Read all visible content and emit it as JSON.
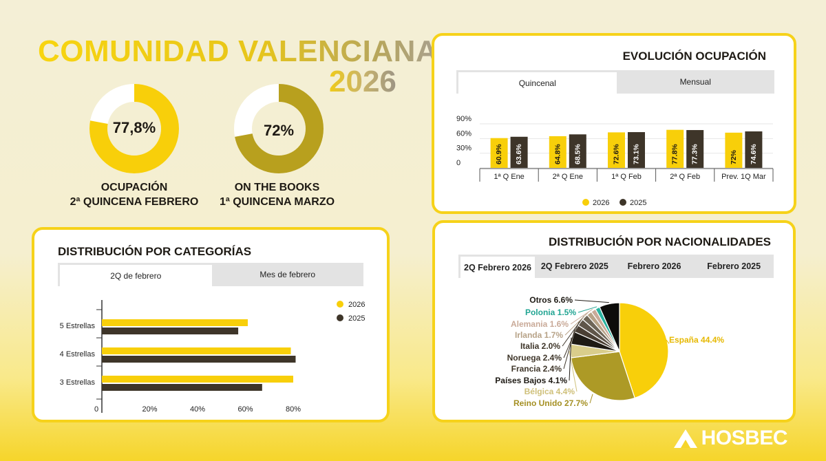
{
  "header": {
    "title_line1": "COMUNIDAD VALENCIANA",
    "title_line2": "2026"
  },
  "kpis": [
    {
      "value_label": "77,8%",
      "value": 77.8,
      "caption_line1": "OCUPACIÓN",
      "caption_line2": "2ª QUINCENA FEBRERO",
      "color": "#f8cf0a"
    },
    {
      "value_label": "72%",
      "value": 72,
      "caption_line1": "ON THE BOOKS",
      "caption_line2": "1ª QUINCENA MARZO",
      "color": "#b8a01e"
    }
  ],
  "occupancy_card": {
    "title": "EVOLUCIÓN OCUPACIÓN",
    "tabs": [
      "Quincenal",
      "Mensual"
    ],
    "legend": [
      "2026",
      "2025"
    ]
  },
  "categories_card": {
    "title": "DISTRIBUCIÓN POR CATEGORÍAS",
    "tabs": [
      "2Q de febrero",
      "Mes de febrero"
    ],
    "legend": [
      "2026",
      "2025"
    ]
  },
  "nationalities_card": {
    "title": "DISTRIBUCIÓN POR NACIONALIDADES",
    "tabs": [
      "2Q Febrero 2026",
      "2Q Febrero 2025",
      "Febrero 2026",
      "Febrero 2025"
    ]
  },
  "brand": {
    "name": "HOSBEC"
  },
  "colors": {
    "c2026": "#f8cf0a",
    "c2025": "#3e3529",
    "accent": "#f6d21a"
  },
  "chart_data": [
    {
      "type": "bar",
      "title": "EVOLUCIÓN OCUPACIÓN",
      "categories": [
        "1ª Q Ene",
        "2ª Q Ene",
        "1ª Q Feb",
        "2ª Q Feb",
        "Prev. 1Q Mar"
      ],
      "series": [
        {
          "name": "2026",
          "values": [
            60.9,
            64.8,
            72.6,
            77.8,
            72
          ],
          "labels": [
            "60.9%",
            "64.8%",
            "72.6%",
            "77.8%",
            "72%"
          ]
        },
        {
          "name": "2025",
          "values": [
            63.6,
            68.5,
            73.1,
            77.3,
            74.6
          ],
          "labels": [
            "63.6%",
            "68.5%",
            "73.1%",
            "77.3%",
            "74.6%"
          ]
        }
      ],
      "yticks": [
        "90%",
        "60%",
        "30%",
        "0"
      ],
      "ytick_values": [
        90,
        60,
        30,
        0
      ],
      "ylim": [
        0,
        90
      ],
      "legend": "bottom"
    },
    {
      "type": "bar",
      "orientation": "horizontal",
      "title": "DISTRIBUCIÓN POR CATEGORÍAS",
      "categories": [
        "5 Estrellas",
        "4 Estrellas",
        "3 Estrellas"
      ],
      "series": [
        {
          "name": "2026",
          "values": [
            61,
            79,
            80
          ]
        },
        {
          "name": "2025",
          "values": [
            57,
            81,
            67
          ]
        }
      ],
      "xticks": [
        "0",
        "20%",
        "40%",
        "60%",
        "80%"
      ],
      "xtick_values": [
        0,
        20,
        40,
        60,
        80
      ],
      "xlim": [
        0,
        80
      ],
      "legend": "top-right"
    },
    {
      "type": "pie",
      "title": "DISTRIBUCIÓN POR NACIONALIDADES",
      "slices": [
        {
          "label": "España 44.4%",
          "value": 44.4,
          "color": "#f8cf0a"
        },
        {
          "label": "Reino Unido 27.7%",
          "value": 27.7,
          "color": "#ad9a26"
        },
        {
          "label": "Bélgica 4.4%",
          "value": 4.4,
          "color": "#d9cd8b"
        },
        {
          "label": "Países Bajos 4.1%",
          "value": 4.1,
          "color": "#1e1a14"
        },
        {
          "label": "Francia 2.4%",
          "value": 2.4,
          "color": "#4a3f34"
        },
        {
          "label": "Noruega 2.4%",
          "value": 2.4,
          "color": "#5f5549"
        },
        {
          "label": "Italia 2.0%",
          "value": 2.0,
          "color": "#6f6658"
        },
        {
          "label": "Irlanda 1.7%",
          "value": 1.7,
          "color": "#b7a287"
        },
        {
          "label": "Alemania 1.6%",
          "value": 1.6,
          "color": "#c9aa98"
        },
        {
          "label": "Polonia 1.5%",
          "value": 1.5,
          "color": "#2ab3a0"
        },
        {
          "label": "Otros 6.6%",
          "value": 6.6,
          "color": "#0d0c0a"
        }
      ],
      "label_colors": [
        "#e6b800",
        "#a48f22",
        "#cfc07a",
        "#1e1a14",
        "#3e3529",
        "#3e3529",
        "#3e3529",
        "#b7a287",
        "#c9aa98",
        "#22a593",
        "#1e1a14"
      ]
    }
  ]
}
